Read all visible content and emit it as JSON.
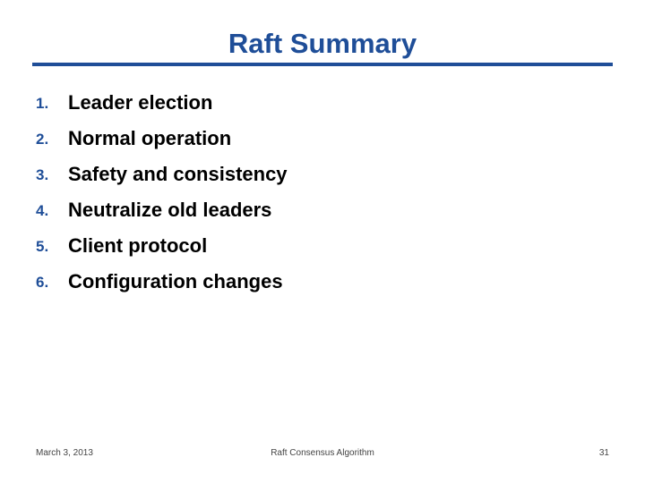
{
  "slide": {
    "title": "Raft Summary",
    "items": [
      {
        "number": "1.",
        "label": "Leader election"
      },
      {
        "number": "2.",
        "label": "Normal operation"
      },
      {
        "number": "3.",
        "label": "Safety and consistency"
      },
      {
        "number": "4.",
        "label": "Neutralize old leaders"
      },
      {
        "number": "5.",
        "label": "Client protocol"
      },
      {
        "number": "6.",
        "label": "Configuration changes"
      }
    ],
    "footer": {
      "date": "March 3, 2013",
      "center": "Raft Consensus Algorithm",
      "page": "31"
    }
  },
  "colors": {
    "accent": "#1f4e98",
    "text": "#000000",
    "background": "#ffffff"
  }
}
